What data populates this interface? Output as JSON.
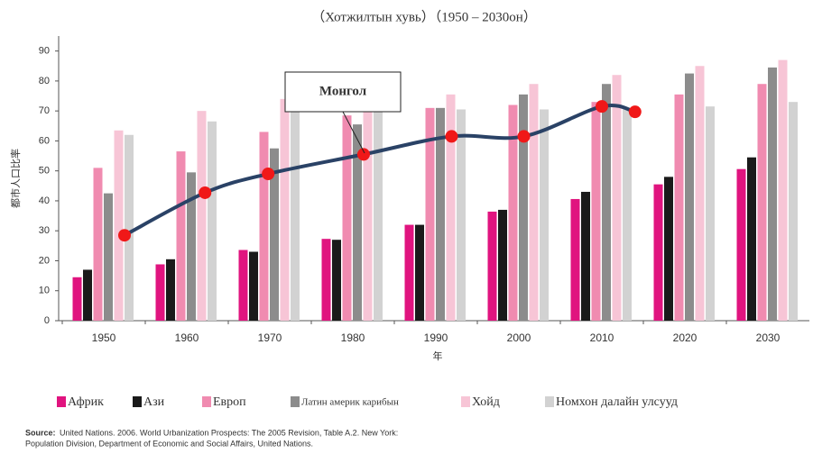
{
  "chart_data": {
    "type": "bar",
    "title": "（Хотжилтын хувь）（1950 – 2030он）",
    "ylabel": "都市人口比率",
    "xlabel": "年",
    "categories": [
      "1950",
      "1960",
      "1970",
      "1980",
      "1990",
      "2000",
      "2010",
      "2020",
      "2030"
    ],
    "series": [
      {
        "name": "Африк",
        "color": "#e0147f",
        "values": [
          14.5,
          18.8,
          23.6,
          27.3,
          32,
          36.4,
          40.6,
          45.5,
          50.6
        ]
      },
      {
        "name": "Ази",
        "color": "#1a1a1a",
        "values": [
          17,
          20.5,
          23,
          27,
          32,
          37,
          43,
          48,
          54.5
        ]
      },
      {
        "name": "Европ",
        "color": "#f08bb0",
        "values": [
          51,
          56.5,
          63,
          68.5,
          71,
          72,
          73,
          75.5,
          79
        ]
      },
      {
        "name": "Латин америк карибын",
        "color": "#8c8c8c",
        "values": [
          42.5,
          49.5,
          57.5,
          65.5,
          71,
          75.5,
          79,
          82.5,
          84.5
        ]
      },
      {
        "name": "Хойд",
        "color": "#f7c5d6",
        "values": [
          63.5,
          70,
          74,
          74,
          75.5,
          79,
          82,
          85,
          87
        ]
      },
      {
        "name": "Номхон далайн улсууд",
        "color": "#d2d2d2",
        "values": [
          62,
          66.5,
          71,
          71.5,
          70.5,
          70.5,
          71,
          71.5,
          73
        ]
      }
    ],
    "line": {
      "name": "Монгол",
      "color": "#2a4266",
      "marker_color": "#f01818",
      "x": [
        1952.5,
        1962.2,
        1969.8,
        1981.3,
        1991.9,
        2000.6,
        2010,
        2014
      ],
      "values": [
        28.5,
        42.7,
        49,
        55.5,
        61.5,
        61.5,
        71.5,
        69.7
      ]
    },
    "ylim": [
      0,
      95
    ],
    "yticks": [
      0,
      10,
      20,
      30,
      40,
      50,
      60,
      70,
      80,
      90
    ],
    "grid": false,
    "source_label": "Source:",
    "source_lines": [
      "United Nations. 2006. World Urbanization Prospects: The 2005 Revision, Table A.2. New York:",
      "Population Division, Department of Economic and Social Affairs, United Nations."
    ]
  }
}
